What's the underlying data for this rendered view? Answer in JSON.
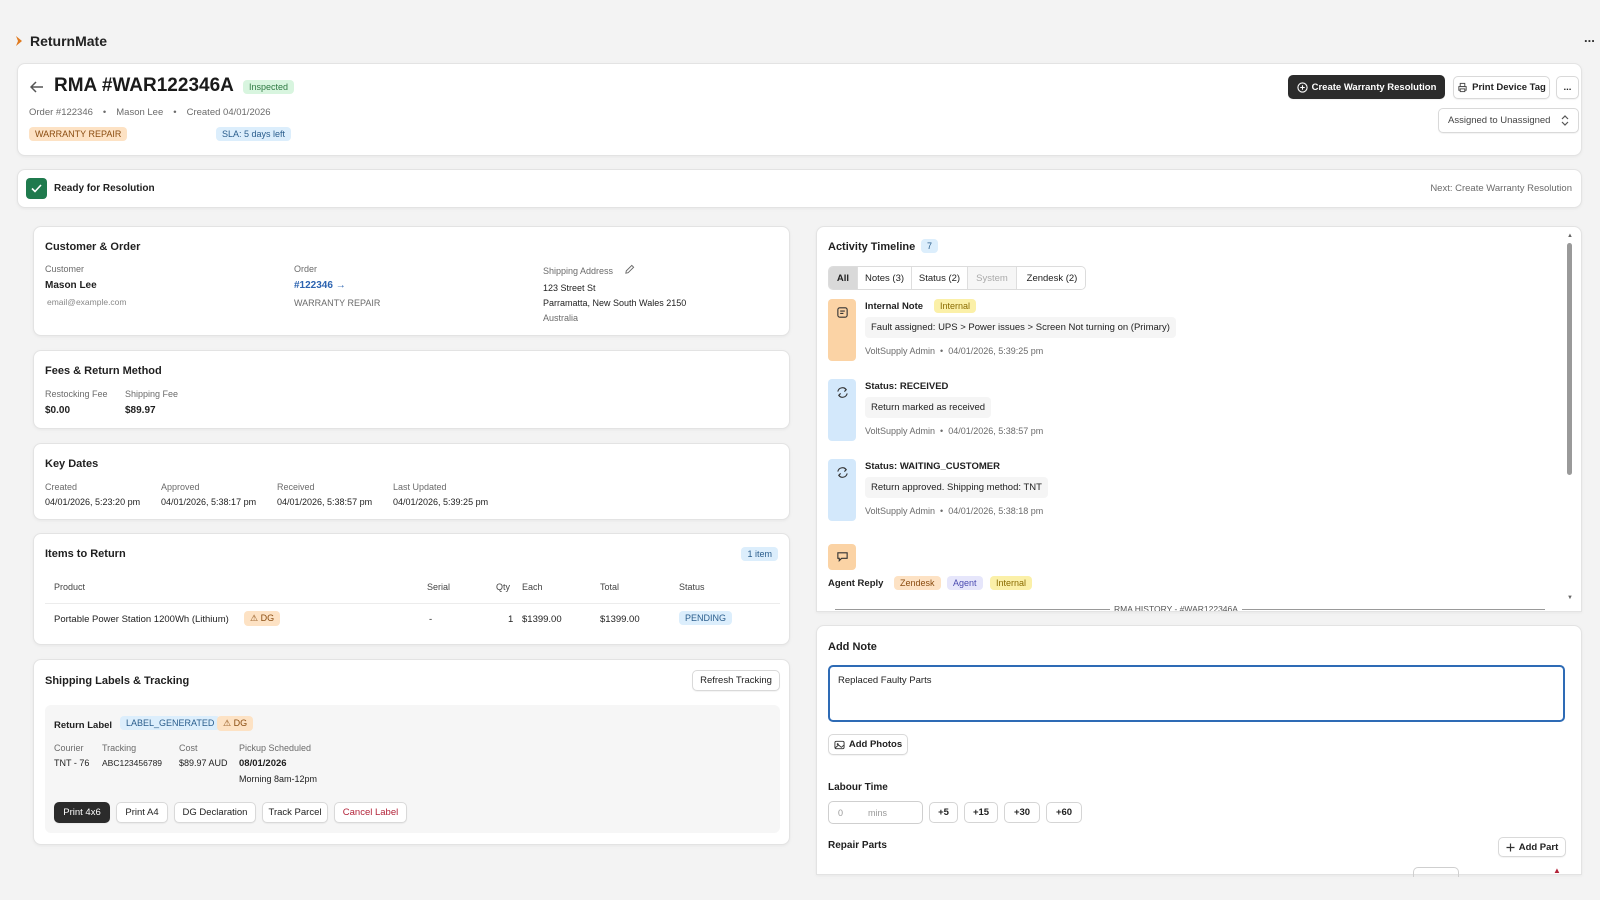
{
  "app": {
    "name": "ReturnMate",
    "more": "..."
  },
  "header": {
    "title": "RMA #WAR122346A",
    "status_badge": "Inspected",
    "order": "Order #122346",
    "customer": "Mason Lee",
    "created": "Created 04/01/2026",
    "type_badge": "WARRANTY REPAIR",
    "sla_badge": "SLA: 5 days left",
    "create_resolution_button": "Create Warranty Resolution",
    "print_tag_button": "Print Device Tag",
    "more_button": "...",
    "assigned_select": "Assigned to Unassigned"
  },
  "banner": {
    "label": "Ready for Resolution",
    "next": "Next: Create Warranty Resolution"
  },
  "customer_order": {
    "title": "Customer & Order",
    "customer_label": "Customer",
    "customer_name": "Mason Lee",
    "customer_email": "email@example.com",
    "order_label": "Order",
    "order_link": "#122346 →",
    "order_type": "WARRANTY REPAIR",
    "shipping_label": "Shipping Address",
    "address_line1": "123 Street St",
    "address_line2": "Parramatta, New South Wales 2150",
    "address_line3": "Australia"
  },
  "fees": {
    "title": "Fees & Return Method",
    "restocking_label": "Restocking Fee",
    "restocking_value": "$0.00",
    "shipping_label": "Shipping Fee",
    "shipping_value": "$89.97"
  },
  "key_dates": {
    "title": "Key Dates",
    "items": [
      {
        "label": "Created",
        "value": "04/01/2026, 5:23:20 pm"
      },
      {
        "label": "Approved",
        "value": "04/01/2026, 5:38:17 pm"
      },
      {
        "label": "Received",
        "value": "04/01/2026, 5:38:57 pm"
      },
      {
        "label": "Last Updated",
        "value": "04/01/2026, 5:39:25 pm"
      }
    ]
  },
  "items_to_return": {
    "title": "Items to Return",
    "count_badge": "1 item",
    "columns": [
      "Product",
      "Serial",
      "Qty",
      "Each",
      "Total",
      "Status"
    ],
    "rows": [
      {
        "product": "Portable Power Station 1200Wh (Lithium)",
        "dg": "DG",
        "serial": "-",
        "qty": "1",
        "each": "$1399.00",
        "total": "$1399.00",
        "status": "PENDING"
      }
    ]
  },
  "shipping": {
    "title": "Shipping Labels & Tracking",
    "refresh_button": "Refresh Tracking",
    "label_title": "Return Label",
    "label_status": "LABEL_GENERATED",
    "dg": "DG",
    "courier_label": "Courier",
    "courier_value": "TNT - 76",
    "tracking_label": "Tracking",
    "tracking_value": "ABC123456789",
    "cost_label": "Cost",
    "cost_value": "$89.97 AUD",
    "pickup_label": "Pickup Scheduled",
    "pickup_date": "08/01/2026",
    "pickup_window": "Morning 8am-12pm",
    "buttons": [
      "Print 4x6",
      "Print A4",
      "DG Declaration",
      "Track Parcel",
      "Cancel Label"
    ]
  },
  "timeline": {
    "title": "Activity Timeline",
    "count": "7",
    "tabs": [
      "All",
      "Notes (3)",
      "Status (2)",
      "System",
      "Zendesk (2)"
    ],
    "entries": [
      {
        "title": "Internal Note",
        "badge": "Internal",
        "text": "Fault assigned: UPS > Power issues > Screen Not turning on (Primary)",
        "meta": "VoltSupply Admin  •  04/01/2026, 5:39:25 pm"
      },
      {
        "title": "Status: RECEIVED",
        "text": "Return marked as received",
        "meta": "VoltSupply Admin  •  04/01/2026, 5:38:57 pm"
      },
      {
        "title": "Status: WAITING_CUSTOMER",
        "text": "Return approved. Shipping method: TNT",
        "meta": "VoltSupply Admin  •  04/01/2026, 5:38:18 pm"
      }
    ],
    "agent_reply": {
      "title": "Agent Reply",
      "badges": [
        "Zendesk",
        "Agent",
        "Internal"
      ],
      "history": "RMA HISTORY - #WAR122346A"
    }
  },
  "add_note": {
    "title": "Add Note",
    "note_value": "Replaced Faulty Parts",
    "add_photos_button": "Add Photos",
    "labour_title": "Labour Time",
    "labour_placeholder": "0",
    "labour_unit": "mins",
    "increments": [
      "+5",
      "+15",
      "+30",
      "+60"
    ],
    "repair_parts_title": "Repair Parts",
    "add_part_button": "Add Part"
  },
  "colors": {
    "dark_button": "#2b2b2b",
    "ready_green": "#1f7a4d",
    "focus_blue": "#2e6bb5",
    "note_orange": "#fbd3a5",
    "status_blue": "#d3e8fb"
  }
}
